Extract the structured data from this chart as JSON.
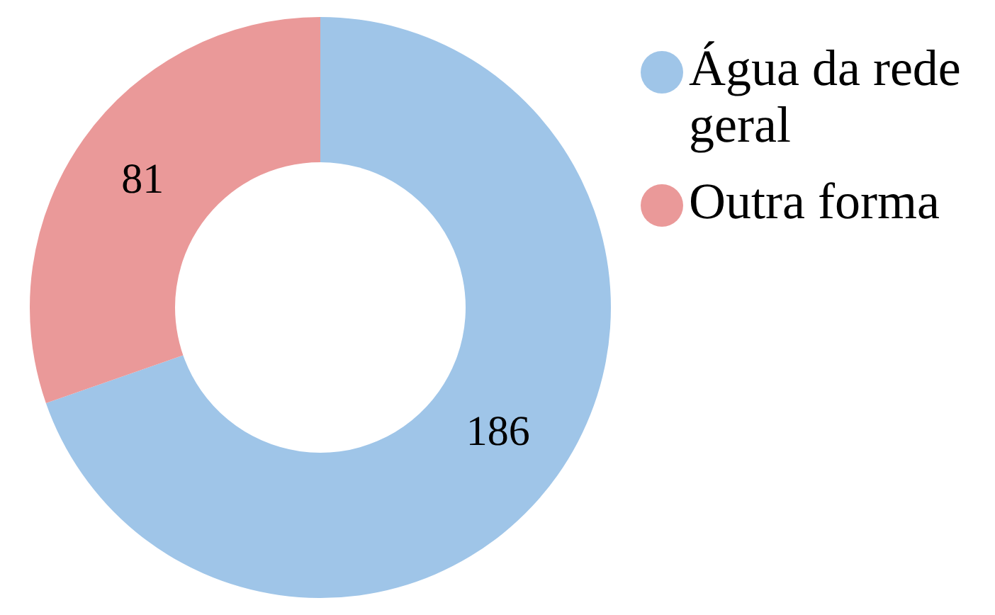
{
  "chart_data": {
    "type": "donut",
    "categories": [
      "Água da rede geral",
      "Outra forma"
    ],
    "values": [
      186,
      81
    ],
    "colors": [
      "#9fc5e8",
      "#ea9999"
    ],
    "data_labels": true,
    "legend": "top right"
  }
}
